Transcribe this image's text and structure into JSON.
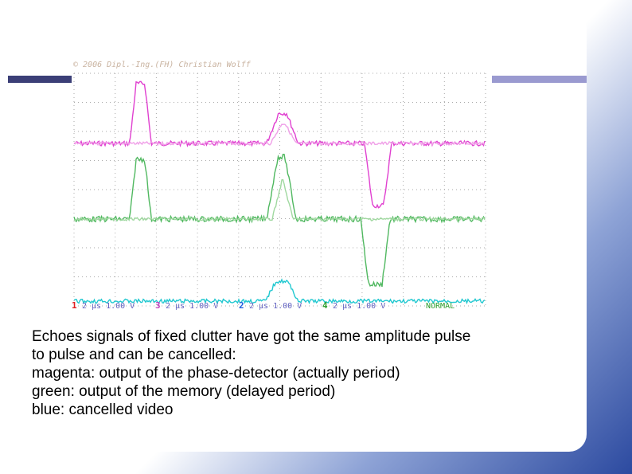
{
  "slide": {
    "watermark": "© 2006 Dipl.-Ing.(FH) Christian Wolff",
    "scope": {
      "status": [
        {
          "channel": "1",
          "setting": "2 µs 1.00 V"
        },
        {
          "channel": "3",
          "setting": "2 µs 1.00 V"
        },
        {
          "channel": "2",
          "setting": "2 µs 1.00 V"
        },
        {
          "channel": "4",
          "setting": "2 µs 1.00 V"
        }
      ],
      "mode": "NORMAL"
    },
    "caption": [
      "Echoes signals of fixed clutter have got the same amplitude pulse",
      "to pulse and can be cancelled:",
      "magenta: output of the phase-detector (actually period)",
      "green: output of the memory (delayed period)",
      "blue: cancelled video"
    ]
  }
}
